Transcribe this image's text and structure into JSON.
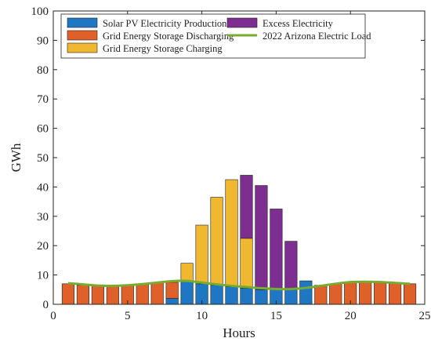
{
  "chart_data": {
    "type": "bar",
    "xlabel": "Hours",
    "ylabel": "GWh",
    "xlim": [
      0,
      25
    ],
    "ylim": [
      0,
      100
    ],
    "xticks": [
      0,
      5,
      10,
      15,
      20,
      25
    ],
    "yticks": [
      0,
      10,
      20,
      30,
      40,
      50,
      60,
      70,
      80,
      90,
      100
    ],
    "grid": false,
    "legend_position": "top",
    "hours": [
      1,
      2,
      3,
      4,
      5,
      6,
      7,
      8,
      9,
      10,
      11,
      12,
      13,
      14,
      15,
      16,
      17,
      18,
      19,
      20,
      21,
      22,
      23,
      24
    ],
    "series": [
      {
        "name": "Solar PV Electricity Production",
        "color": "#1f77c4",
        "values": [
          0,
          0,
          0,
          0,
          0,
          0,
          0,
          2,
          8,
          7,
          6.5,
          6,
          5.5,
          5,
          5,
          5,
          8,
          0,
          0,
          0,
          0,
          0,
          0,
          0
        ]
      },
      {
        "name": "Grid Energy Storage Discharging",
        "color": "#e0602a",
        "values": [
          7,
          6.5,
          6.3,
          6.3,
          6.5,
          6.8,
          7.3,
          5.5,
          0,
          0,
          0,
          0,
          0,
          0,
          0,
          0,
          0,
          6.5,
          7,
          7.5,
          7.5,
          7.4,
          7.2,
          7
        ]
      },
      {
        "name": "Grid Energy Storage Charging",
        "color": "#f0b731",
        "values": [
          0,
          0,
          0,
          0,
          0,
          0,
          0,
          0,
          6,
          20,
          30,
          36.5,
          17,
          0,
          0,
          0,
          0,
          0,
          0,
          0,
          0,
          0,
          0,
          0
        ]
      },
      {
        "name": "Excess Electricity",
        "color": "#7e2d91",
        "values": [
          0,
          0,
          0,
          0,
          0,
          0,
          0,
          0,
          0,
          0,
          0,
          0,
          21.5,
          35.5,
          27.5,
          16.5,
          0,
          0,
          0,
          0,
          0,
          0,
          0,
          0
        ]
      }
    ],
    "load": {
      "name": "2022 Arizona Electric Load",
      "color": "#77ac30",
      "values": [
        7.2,
        6.8,
        6.4,
        6.3,
        6.5,
        6.9,
        7.4,
        7.9,
        8.0,
        7.4,
        6.8,
        6.3,
        5.9,
        5.5,
        5.2,
        5.2,
        5.6,
        6.3,
        7.0,
        7.6,
        7.7,
        7.6,
        7.3,
        7.0
      ]
    }
  }
}
